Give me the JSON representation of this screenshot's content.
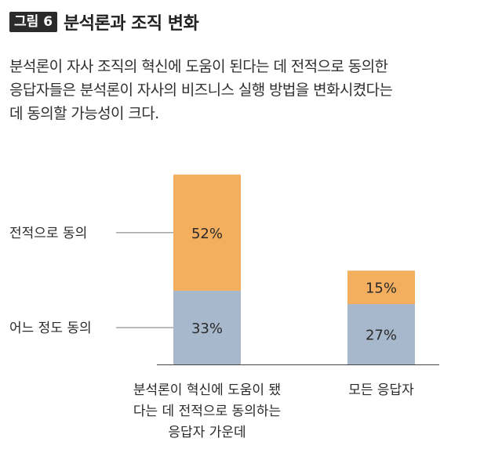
{
  "header": {
    "tag": "그림 6",
    "title": "분석론과 조직 변화"
  },
  "caption": {
    "lines": [
      "분석론이 자사 조직의 혁신에 도움이 된다는 데 전적으로 동의한",
      "응답자들은 분석론이 자사의 비즈니스 실행 방법을 변화시켰다는",
      "데 동의할 가능성이 크다."
    ]
  },
  "chart_data": {
    "type": "bar",
    "stacked": true,
    "categories": [
      [
        "분석론이 혁신에 도움이 됐",
        "다는 데 전적으로 동의하는",
        "응답자 가운데"
      ],
      [
        "모든 응답자"
      ]
    ],
    "series": [
      {
        "name": "어느 정도 동의",
        "values": [
          33,
          27
        ],
        "labels": [
          "33%",
          "27%"
        ],
        "color": "#a8b8cc"
      },
      {
        "name": "전적으로 동의",
        "values": [
          52,
          15
        ],
        "labels": [
          "52%",
          "15%"
        ],
        "color": "#f3ae5e"
      }
    ],
    "ylim": [
      0,
      85
    ],
    "legend_placement": "left"
  }
}
